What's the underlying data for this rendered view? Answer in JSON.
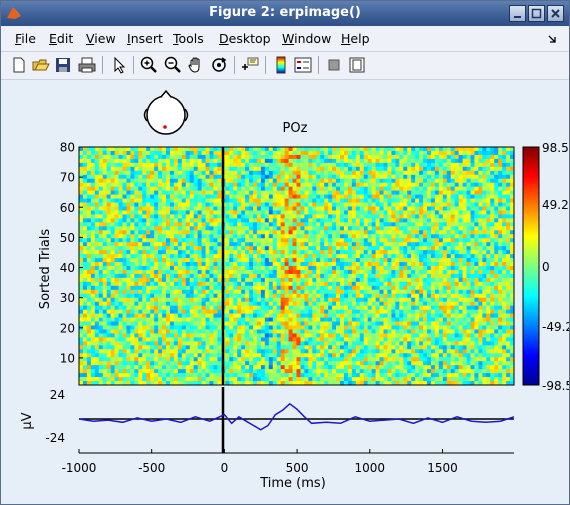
{
  "window": {
    "title": "Figure 2:  erpimage()"
  },
  "menu": [
    {
      "label": "File",
      "u": "F",
      "rest": "ile"
    },
    {
      "label": "Edit",
      "u": "E",
      "rest": "dit"
    },
    {
      "label": "View",
      "u": "V",
      "rest": "iew"
    },
    {
      "label": "Insert",
      "u": "I",
      "rest": "nsert"
    },
    {
      "label": "Tools",
      "u": "T",
      "rest": "ools"
    },
    {
      "label": "Desktop",
      "u": "D",
      "rest": "esktop"
    },
    {
      "label": "Window",
      "u": "W",
      "rest": "indow"
    },
    {
      "label": "Help",
      "u": "H",
      "rest": "elp"
    }
  ],
  "toolbar_icons": [
    "new-figure-icon",
    "open-file-icon",
    "save-icon",
    "print-icon",
    "edit-plot-arrow-icon",
    "zoom-in-icon",
    "zoom-out-icon",
    "pan-hand-icon",
    "rotate-3d-icon",
    "data-cursor-icon",
    "insert-colorbar-icon",
    "insert-legend-icon",
    "hide-plot-tools-icon",
    "show-plot-tools-icon"
  ],
  "figure": {
    "channel_label": "POz",
    "image_ylabel": "Sorted Trials",
    "image_yticks": [
      "80",
      "70",
      "60",
      "50",
      "40",
      "30",
      "20",
      "10"
    ],
    "colorbar_ticks": [
      "98.5",
      "49.2",
      "0",
      "-49.2",
      "-98.5"
    ],
    "erp_ylabel": "µV",
    "erp_yticks": [
      "24",
      "-24"
    ],
    "xticks": [
      "-1000",
      "-500",
      "0",
      "500",
      "1000",
      "1500"
    ],
    "xlabel": "Time (ms)"
  },
  "chart_data": {
    "type": "heatmap",
    "title": "POz",
    "xlabel": "Time (ms)",
    "ylabel": "Sorted Trials",
    "xlim": [
      -1000,
      1992
    ],
    "ylim": [
      1,
      80
    ],
    "colorbar_range": [
      -98.5,
      98.5
    ],
    "erp": {
      "type": "line",
      "ylabel": "µV",
      "ylim": [
        -24,
        24
      ],
      "x": [
        -1000,
        -900,
        -800,
        -700,
        -600,
        -500,
        -400,
        -300,
        -200,
        -100,
        0,
        50,
        100,
        150,
        200,
        250,
        300,
        350,
        400,
        450,
        500,
        550,
        600,
        700,
        800,
        900,
        1000,
        1100,
        1200,
        1300,
        1400,
        1500,
        1600,
        1700,
        1800,
        1900,
        1992
      ],
      "y": [
        0,
        -2,
        -1,
        -3,
        1,
        -2,
        0,
        -3,
        2,
        -2,
        4,
        -4,
        2,
        -2,
        -6,
        -10,
        -6,
        4,
        8,
        14,
        9,
        2,
        -4,
        -3,
        -4,
        2,
        -2,
        -1,
        0,
        -4,
        1,
        -3,
        2,
        -2,
        -3,
        -2,
        2
      ]
    }
  }
}
